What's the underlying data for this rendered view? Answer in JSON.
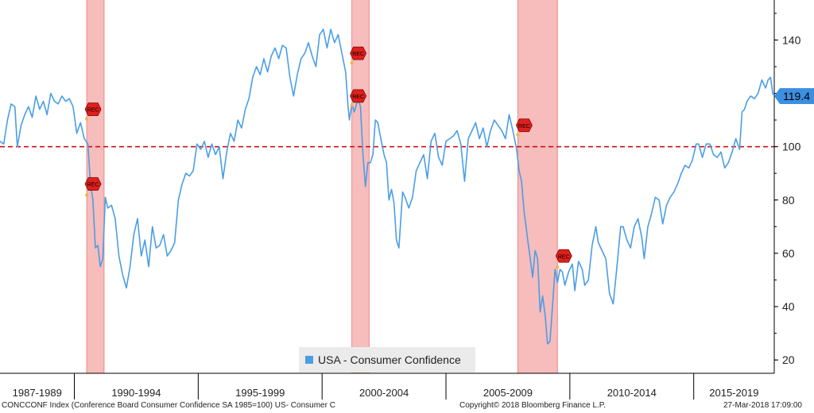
{
  "chart_data": {
    "type": "line",
    "ylim": [
      15,
      155
    ],
    "yticks": [
      20,
      40,
      60,
      80,
      100,
      120,
      140
    ],
    "reference_line": 100,
    "x_range": [
      1987.0,
      2018.25
    ],
    "x_period_labels": [
      "1987-1989",
      "1990-1994",
      "1995-1999",
      "2000-2004",
      "2005-2009",
      "2010-2014",
      "2015-2019"
    ],
    "recessions": [
      [
        1990.5,
        1991.2
      ],
      [
        2001.2,
        2001.9
      ],
      [
        2007.9,
        2009.5
      ]
    ],
    "recession_markers": [
      {
        "label": "REC",
        "x": 1990.5,
        "y": 114
      },
      {
        "label": "REC",
        "x": 1990.5,
        "y": 86
      },
      {
        "label": "REC",
        "x": 2001.2,
        "y": 135
      },
      {
        "label": "REC",
        "x": 2001.2,
        "y": 119
      },
      {
        "label": "REC",
        "x": 2007.9,
        "y": 108
      },
      {
        "label": "REC",
        "x": 2009.5,
        "y": 59
      }
    ],
    "last_value": "119.4",
    "series": [
      {
        "name": "USA - Consumer Confidence",
        "color": "#4a9ee6",
        "points": [
          [
            1987.0,
            102
          ],
          [
            1987.15,
            101
          ],
          [
            1987.3,
            110
          ],
          [
            1987.45,
            116
          ],
          [
            1987.6,
            115
          ],
          [
            1987.7,
            100
          ],
          [
            1987.85,
            108
          ],
          [
            1988.0,
            112
          ],
          [
            1988.15,
            115
          ],
          [
            1988.3,
            111
          ],
          [
            1988.45,
            119
          ],
          [
            1988.6,
            114
          ],
          [
            1988.75,
            117
          ],
          [
            1988.9,
            112
          ],
          [
            1989.05,
            120
          ],
          [
            1989.2,
            117
          ],
          [
            1989.35,
            116
          ],
          [
            1989.5,
            119
          ],
          [
            1989.65,
            117
          ],
          [
            1989.8,
            118
          ],
          [
            1989.95,
            115
          ],
          [
            1990.1,
            105
          ],
          [
            1990.25,
            109
          ],
          [
            1990.4,
            103
          ],
          [
            1990.55,
            101
          ],
          [
            1990.65,
            86
          ],
          [
            1990.75,
            80
          ],
          [
            1990.85,
            62
          ],
          [
            1990.95,
            63
          ],
          [
            1991.05,
            55
          ],
          [
            1991.15,
            58
          ],
          [
            1991.25,
            81
          ],
          [
            1991.35,
            77
          ],
          [
            1991.5,
            78
          ],
          [
            1991.65,
            73
          ],
          [
            1991.8,
            59
          ],
          [
            1991.95,
            52
          ],
          [
            1992.1,
            47
          ],
          [
            1992.25,
            55
          ],
          [
            1992.4,
            67
          ],
          [
            1992.55,
            73
          ],
          [
            1992.7,
            59
          ],
          [
            1992.85,
            65
          ],
          [
            1993.0,
            55
          ],
          [
            1993.15,
            70
          ],
          [
            1993.3,
            62
          ],
          [
            1993.45,
            63
          ],
          [
            1993.6,
            67
          ],
          [
            1993.75,
            59
          ],
          [
            1993.9,
            61
          ],
          [
            1994.05,
            64
          ],
          [
            1994.2,
            80
          ],
          [
            1994.35,
            86
          ],
          [
            1994.5,
            90
          ],
          [
            1994.65,
            89
          ],
          [
            1994.8,
            91
          ],
          [
            1994.95,
            101
          ],
          [
            1995.1,
            99
          ],
          [
            1995.25,
            102
          ],
          [
            1995.4,
            96
          ],
          [
            1995.55,
            101
          ],
          [
            1995.7,
            97
          ],
          [
            1995.85,
            100
          ],
          [
            1996.0,
            88
          ],
          [
            1996.15,
            98
          ],
          [
            1996.3,
            105
          ],
          [
            1996.45,
            102
          ],
          [
            1996.6,
            110
          ],
          [
            1996.75,
            107
          ],
          [
            1996.9,
            114
          ],
          [
            1997.05,
            118
          ],
          [
            1997.2,
            126
          ],
          [
            1997.35,
            130
          ],
          [
            1997.5,
            127
          ],
          [
            1997.65,
            133
          ],
          [
            1997.8,
            128
          ],
          [
            1997.95,
            134
          ],
          [
            1998.1,
            137
          ],
          [
            1998.25,
            133
          ],
          [
            1998.4,
            138
          ],
          [
            1998.55,
            137
          ],
          [
            1998.7,
            126
          ],
          [
            1998.85,
            119
          ],
          [
            1999.0,
            127
          ],
          [
            1999.15,
            133
          ],
          [
            1999.3,
            135
          ],
          [
            1999.45,
            139
          ],
          [
            1999.6,
            134
          ],
          [
            1999.75,
            130
          ],
          [
            1999.9,
            142
          ],
          [
            2000.05,
            144
          ],
          [
            2000.2,
            137
          ],
          [
            2000.35,
            144
          ],
          [
            2000.5,
            139
          ],
          [
            2000.65,
            142
          ],
          [
            2000.8,
            135
          ],
          [
            2000.95,
            128
          ],
          [
            2001.05,
            115
          ],
          [
            2001.1,
            110
          ],
          [
            2001.2,
            116
          ],
          [
            2001.3,
            113
          ],
          [
            2001.45,
            118
          ],
          [
            2001.55,
            115
          ],
          [
            2001.65,
            97
          ],
          [
            2001.75,
            85
          ],
          [
            2001.85,
            94
          ],
          [
            2001.95,
            94
          ],
          [
            2002.05,
            97
          ],
          [
            2002.15,
            110
          ],
          [
            2002.25,
            109
          ],
          [
            2002.35,
            104
          ],
          [
            2002.5,
            97
          ],
          [
            2002.6,
            94
          ],
          [
            2002.7,
            80
          ],
          [
            2002.8,
            84
          ],
          [
            2002.9,
            79
          ],
          [
            2003.0,
            65
          ],
          [
            2003.1,
            62
          ],
          [
            2003.25,
            83
          ],
          [
            2003.35,
            81
          ],
          [
            2003.5,
            77
          ],
          [
            2003.65,
            81
          ],
          [
            2003.8,
            91
          ],
          [
            2003.95,
            94
          ],
          [
            2004.1,
            97
          ],
          [
            2004.25,
            88
          ],
          [
            2004.4,
            102
          ],
          [
            2004.55,
            105
          ],
          [
            2004.7,
            96
          ],
          [
            2004.85,
            93
          ],
          [
            2005.0,
            102
          ],
          [
            2005.15,
            103
          ],
          [
            2005.3,
            104
          ],
          [
            2005.45,
            106
          ],
          [
            2005.6,
            101
          ],
          [
            2005.75,
            87
          ],
          [
            2005.9,
            103
          ],
          [
            2006.05,
            106
          ],
          [
            2006.2,
            109
          ],
          [
            2006.35,
            103
          ],
          [
            2006.5,
            107
          ],
          [
            2006.65,
            100
          ],
          [
            2006.8,
            106
          ],
          [
            2006.95,
            110
          ],
          [
            2007.1,
            108
          ],
          [
            2007.25,
            106
          ],
          [
            2007.4,
            103
          ],
          [
            2007.55,
            112
          ],
          [
            2007.7,
            106
          ],
          [
            2007.85,
            99
          ],
          [
            2007.95,
            91
          ],
          [
            2008.05,
            87
          ],
          [
            2008.15,
            76
          ],
          [
            2008.3,
            65
          ],
          [
            2008.4,
            58
          ],
          [
            2008.5,
            51
          ],
          [
            2008.6,
            61
          ],
          [
            2008.7,
            58
          ],
          [
            2008.8,
            38
          ],
          [
            2008.9,
            44
          ],
          [
            2009.0,
            37
          ],
          [
            2009.1,
            26
          ],
          [
            2009.2,
            27
          ],
          [
            2009.3,
            40
          ],
          [
            2009.4,
            54
          ],
          [
            2009.5,
            49
          ],
          [
            2009.6,
            54
          ],
          [
            2009.7,
            53
          ],
          [
            2009.8,
            48
          ],
          [
            2009.95,
            53
          ],
          [
            2010.1,
            56
          ],
          [
            2010.2,
            46
          ],
          [
            2010.35,
            57
          ],
          [
            2010.5,
            54
          ],
          [
            2010.6,
            48
          ],
          [
            2010.75,
            50
          ],
          [
            2010.9,
            63
          ],
          [
            2011.05,
            70
          ],
          [
            2011.15,
            64
          ],
          [
            2011.3,
            61
          ],
          [
            2011.45,
            58
          ],
          [
            2011.6,
            45
          ],
          [
            2011.75,
            41
          ],
          [
            2011.9,
            55
          ],
          [
            2012.05,
            70
          ],
          [
            2012.15,
            70
          ],
          [
            2012.3,
            65
          ],
          [
            2012.45,
            62
          ],
          [
            2012.6,
            70
          ],
          [
            2012.75,
            73
          ],
          [
            2012.9,
            66
          ],
          [
            2013.0,
            58
          ],
          [
            2013.15,
            70
          ],
          [
            2013.3,
            75
          ],
          [
            2013.45,
            81
          ],
          [
            2013.6,
            80
          ],
          [
            2013.75,
            71
          ],
          [
            2013.9,
            78
          ],
          [
            2014.05,
            81
          ],
          [
            2014.2,
            83
          ],
          [
            2014.35,
            86
          ],
          [
            2014.5,
            90
          ],
          [
            2014.65,
            93
          ],
          [
            2014.8,
            92
          ],
          [
            2014.95,
            95
          ],
          [
            2015.1,
            101
          ],
          [
            2015.2,
            101
          ],
          [
            2015.35,
            96
          ],
          [
            2015.5,
            101
          ],
          [
            2015.65,
            101
          ],
          [
            2015.8,
            97
          ],
          [
            2015.95,
            96
          ],
          [
            2016.1,
            98
          ],
          [
            2016.25,
            92
          ],
          [
            2016.4,
            94
          ],
          [
            2016.55,
            98
          ],
          [
            2016.7,
            103
          ],
          [
            2016.85,
            99
          ],
          [
            2016.95,
            113
          ],
          [
            2017.05,
            114
          ],
          [
            2017.15,
            117
          ],
          [
            2017.3,
            119
          ],
          [
            2017.45,
            118
          ],
          [
            2017.6,
            120
          ],
          [
            2017.75,
            125
          ],
          [
            2017.9,
            122
          ],
          [
            2018.0,
            125
          ],
          [
            2018.1,
            126
          ],
          [
            2018.2,
            119.4
          ]
        ]
      }
    ]
  },
  "legend": {
    "label": "USA - Consumer Confidence",
    "color": "#4a9ee6"
  },
  "footer": {
    "left": "CONCCONF Index (Conference Board Consumer Confidence SA 1985=100) US- Consumer C",
    "center": "Copyright© 2018 Bloomberg Finance L.P.",
    "right": "27-Mar-2018 17:09:00"
  }
}
